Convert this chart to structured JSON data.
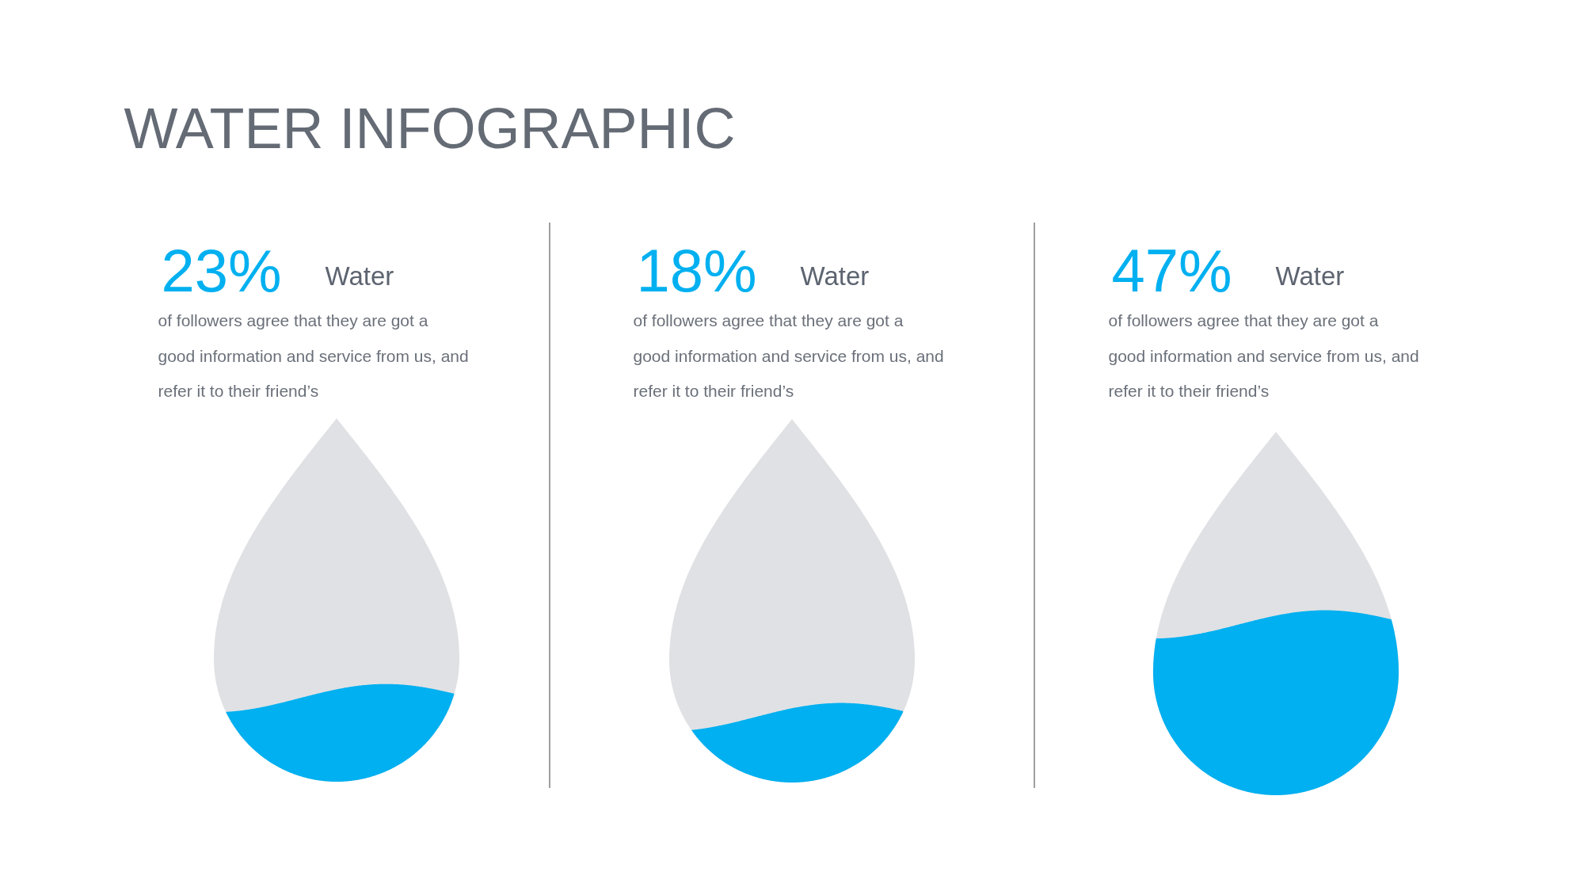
{
  "chart_data": [
    {
      "type": "other",
      "title": "WATER INFOGRAPHIC"
    },
    {
      "type": "other",
      "categories": [
        "Water"
      ],
      "values": [
        23
      ],
      "value_labels": [
        "23%"
      ],
      "colors": [
        "#00b0f0"
      ],
      "annotations": [
        "of followers agree that they are got a good information and service from us, and refer it to their friend’s"
      ]
    },
    {
      "type": "other",
      "categories": [
        "Water"
      ],
      "values": [
        18
      ],
      "value_labels": [
        "18%"
      ],
      "colors": [
        "#00b0f0"
      ],
      "annotations": [
        "of followers agree that they are got a good information and service from us, and refer it to their friend’s"
      ]
    },
    {
      "type": "other",
      "categories": [
        "Water"
      ],
      "values": [
        47
      ],
      "value_labels": [
        "47%"
      ],
      "colors": [
        "#00b0f0"
      ],
      "annotations": [
        "of followers agree that they are got a good information and service from us, and refer it to their friend’s"
      ]
    }
  ]
}
